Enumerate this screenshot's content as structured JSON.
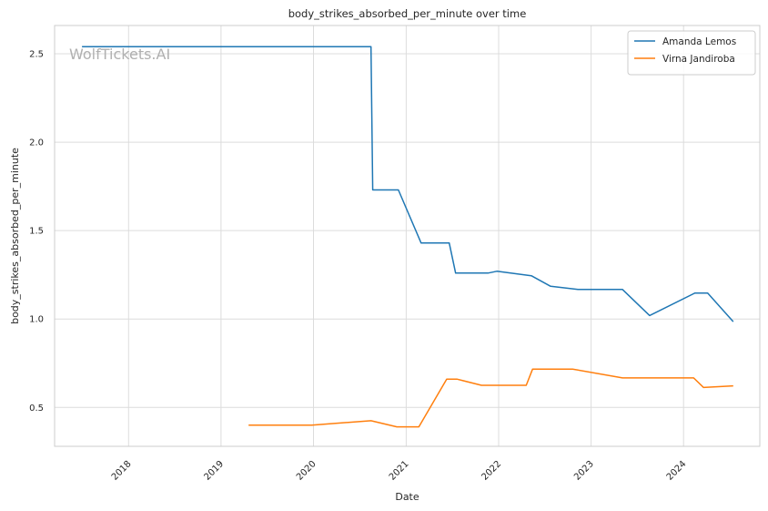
{
  "chart_data": {
    "type": "line",
    "title": "body_strikes_absorbed_per_minute over time",
    "xlabel": "Date",
    "ylabel": "body_strikes_absorbed_per_minute",
    "watermark": "WolfTickets.AI",
    "x_axis_type": "date",
    "xlim": [
      "2017-03-15",
      "2024-10-28"
    ],
    "ylim": [
      0.28,
      2.66
    ],
    "x_ticks": [
      {
        "label": "2018",
        "value": "2018-01-01"
      },
      {
        "label": "2019",
        "value": "2019-01-01"
      },
      {
        "label": "2020",
        "value": "2020-01-01"
      },
      {
        "label": "2021",
        "value": "2021-01-01"
      },
      {
        "label": "2022",
        "value": "2022-01-01"
      },
      {
        "label": "2023",
        "value": "2023-01-01"
      },
      {
        "label": "2024",
        "value": "2024-01-01"
      }
    ],
    "y_ticks": [
      {
        "label": "0.5",
        "value": 0.5
      },
      {
        "label": "1.0",
        "value": 1.0
      },
      {
        "label": "1.5",
        "value": 1.5
      },
      {
        "label": "2.0",
        "value": 2.0
      },
      {
        "label": "2.5",
        "value": 2.5
      }
    ],
    "grid": true,
    "legend_position": "top-right",
    "series": [
      {
        "name": "Amanda Lemos",
        "color": "#1f77b4",
        "points": [
          {
            "x": "2017-07-01",
            "y": 2.54
          },
          {
            "x": "2020-08-15",
            "y": 2.54
          },
          {
            "x": "2020-08-22",
            "y": 1.73
          },
          {
            "x": "2020-12-01",
            "y": 1.73
          },
          {
            "x": "2021-03-01",
            "y": 1.43
          },
          {
            "x": "2021-06-20",
            "y": 1.43
          },
          {
            "x": "2021-07-15",
            "y": 1.26
          },
          {
            "x": "2021-11-20",
            "y": 1.26
          },
          {
            "x": "2021-12-25",
            "y": 1.27
          },
          {
            "x": "2022-05-10",
            "y": 1.245
          },
          {
            "x": "2022-07-25",
            "y": 1.185
          },
          {
            "x": "2022-11-10",
            "y": 1.167
          },
          {
            "x": "2023-05-05",
            "y": 1.167
          },
          {
            "x": "2023-08-20",
            "y": 1.02
          },
          {
            "x": "2024-02-15",
            "y": 1.147
          },
          {
            "x": "2024-04-05",
            "y": 1.147
          },
          {
            "x": "2024-07-15",
            "y": 0.985
          }
        ]
      },
      {
        "name": "Virna Jandiroba",
        "color": "#ff7f0e",
        "points": [
          {
            "x": "2019-04-20",
            "y": 0.4
          },
          {
            "x": "2019-12-25",
            "y": 0.4
          },
          {
            "x": "2020-08-15",
            "y": 0.425
          },
          {
            "x": "2020-11-25",
            "y": 0.39
          },
          {
            "x": "2021-02-20",
            "y": 0.39
          },
          {
            "x": "2021-06-10",
            "y": 0.66
          },
          {
            "x": "2021-07-20",
            "y": 0.66
          },
          {
            "x": "2021-10-25",
            "y": 0.625
          },
          {
            "x": "2022-04-20",
            "y": 0.625
          },
          {
            "x": "2022-05-15",
            "y": 0.717
          },
          {
            "x": "2022-10-20",
            "y": 0.717
          },
          {
            "x": "2023-05-05",
            "y": 0.667
          },
          {
            "x": "2024-02-10",
            "y": 0.667
          },
          {
            "x": "2024-03-20",
            "y": 0.613
          },
          {
            "x": "2024-07-15",
            "y": 0.622
          }
        ]
      }
    ]
  }
}
